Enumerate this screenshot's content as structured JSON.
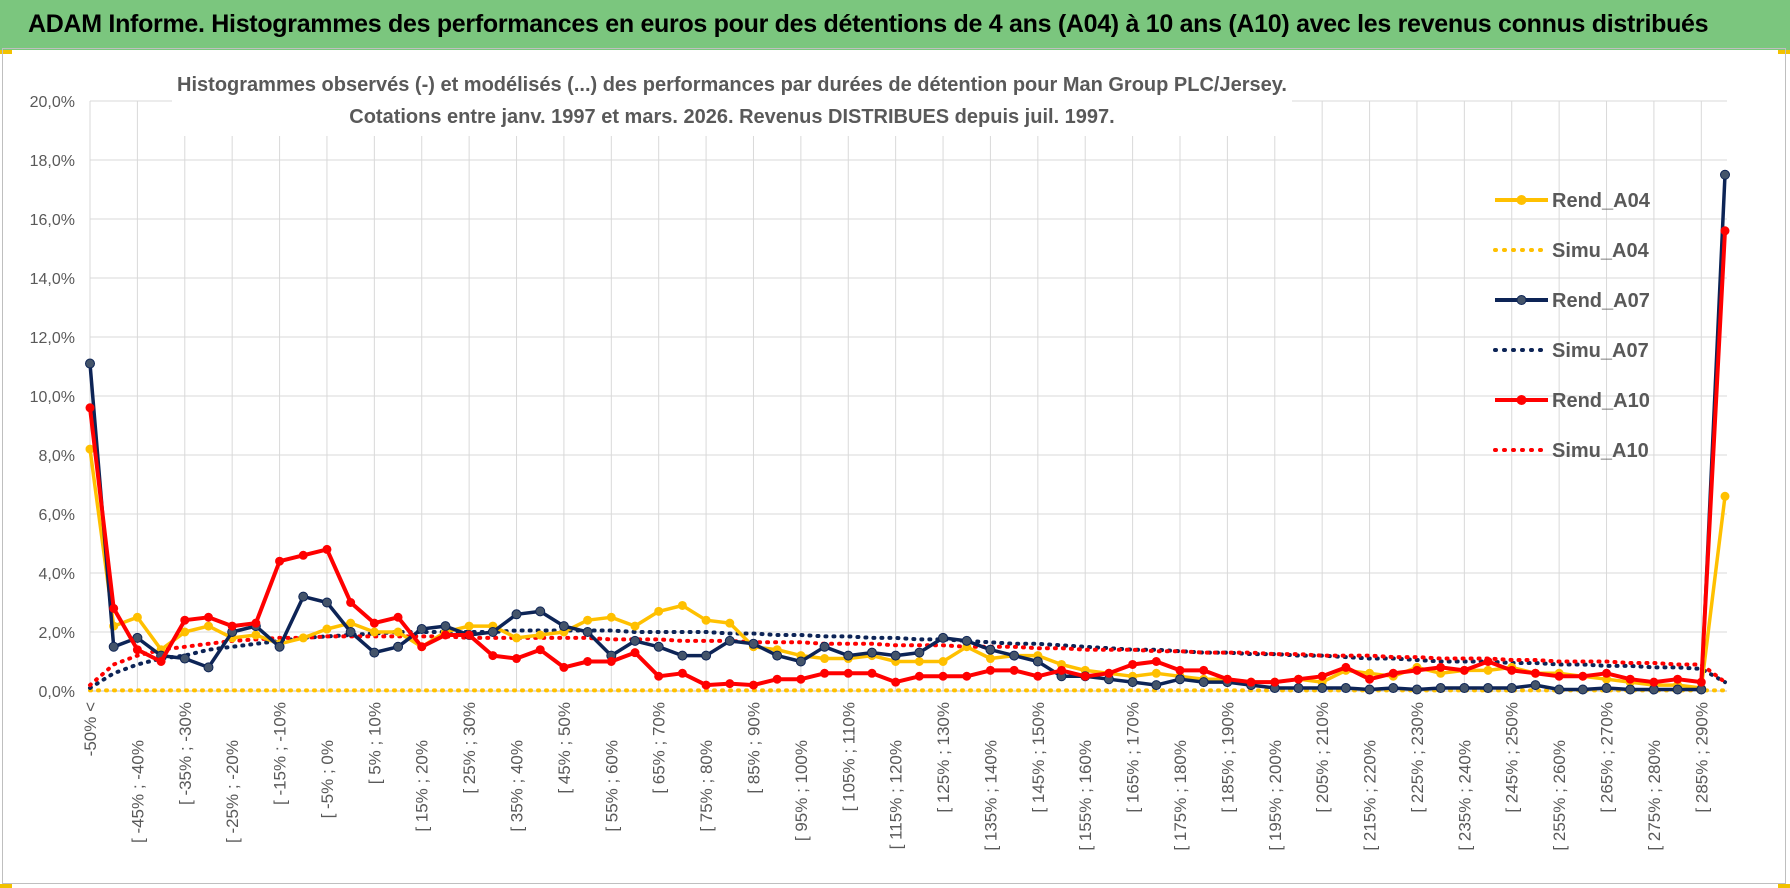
{
  "banner": {
    "title": "ADAM Informe. Histogrammes des performances en euros pour des détentions de 4 ans (A04) à 10 ans (A10) avec les revenus connus distribués"
  },
  "colors": {
    "banner_bg": "#7bc67e",
    "a04": "#ffc000",
    "a07": "#0d2456",
    "a10": "#ff0000",
    "grid": "#d9d9d9",
    "text": "#595959"
  },
  "chart_data": {
    "type": "line",
    "title_line1": "Histogrammes observés (-) et modélisés (...) des performances par durées de détention pour Man Group PLC/Jersey.",
    "title_line2": "Cotations entre janv. 1997 et mars. 2026. Revenus DISTRIBUES depuis juil. 1997.",
    "ylim": [
      0,
      20
    ],
    "yticks": [
      "0,0%",
      "2,0%",
      "4,0%",
      "6,0%",
      "8,0%",
      "10,0%",
      "12,0%",
      "14,0%",
      "16,0%",
      "18,0%",
      "20,0%"
    ],
    "xlabels_even": [
      "-50% <",
      "[ -45% ; -40%",
      "[ -35% ; -30%",
      "[ -25% ; -20%",
      "[ -15% ; -10%",
      "[ -5% ; 0%",
      "[ 5% ; 10%",
      "[ 15% ; 20%",
      "[ 25% ; 30%",
      "[ 35% ; 40%",
      "[ 45% ; 50%",
      "[ 55% ; 60%",
      "[ 65% ; 70%",
      "[ 75% ; 80%",
      "[ 85% ; 90%",
      "[ 95% ; 100%",
      "[ 105% ; 110%",
      "[ 115% ; 120%",
      "[ 125% ; 130%",
      "[ 135% ; 140%",
      "[ 145% ; 150%",
      "[ 155% ; 160%",
      "[ 165% ; 170%",
      "[ 175% ; 180%",
      "[ 185% ; 190%",
      "[ 195% ; 200%",
      "[ 205% ; 210%",
      "[ 215% ; 220%",
      "[ 225% ; 230%",
      "[ 235% ; 240%",
      "[ 245% ; 250%",
      "[ 255% ; 260%",
      "[ 265% ; 270%",
      "[ 275% ; 280%",
      "[ 285% ; 290%"
    ],
    "n_points": 70,
    "series": [
      {
        "name": "Rend_A04",
        "style": "solid",
        "marker": true,
        "color": "#ffc000",
        "values": [
          8.2,
          2.2,
          2.5,
          1.4,
          2.0,
          2.2,
          1.8,
          1.9,
          1.6,
          1.8,
          2.1,
          2.3,
          2.0,
          2.0,
          1.5,
          2.0,
          2.2,
          2.2,
          1.8,
          1.9,
          2.0,
          2.4,
          2.5,
          2.2,
          2.7,
          2.9,
          2.4,
          2.3,
          1.5,
          1.4,
          1.2,
          1.1,
          1.1,
          1.2,
          1.0,
          1.0,
          1.0,
          1.5,
          1.1,
          1.2,
          1.2,
          0.9,
          0.7,
          0.6,
          0.5,
          0.6,
          0.5,
          0.4,
          0.4,
          0.3,
          0.3,
          0.4,
          0.3,
          0.7,
          0.6,
          0.5,
          0.8,
          0.6,
          0.7,
          0.7,
          0.8,
          0.6,
          0.6,
          0.5,
          0.4,
          0.3,
          0.2,
          0.2,
          0.1,
          6.6
        ]
      },
      {
        "name": "Simu_A04",
        "style": "dotted",
        "marker": false,
        "color": "#ffc000",
        "values": [
          0.02,
          0.02,
          0.02,
          0.02,
          0.02,
          0.02,
          0.02,
          0.02,
          0.02,
          0.02,
          0.02,
          0.02,
          0.02,
          0.02,
          0.02,
          0.02,
          0.02,
          0.02,
          0.02,
          0.02,
          0.02,
          0.02,
          0.02,
          0.02,
          0.02,
          0.02,
          0.02,
          0.02,
          0.02,
          0.02,
          0.02,
          0.02,
          0.02,
          0.02,
          0.02,
          0.02,
          0.02,
          0.02,
          0.02,
          0.02,
          0.02,
          0.02,
          0.02,
          0.02,
          0.02,
          0.02,
          0.02,
          0.02,
          0.02,
          0.02,
          0.02,
          0.02,
          0.02,
          0.02,
          0.02,
          0.02,
          0.02,
          0.02,
          0.02,
          0.02,
          0.02,
          0.02,
          0.02,
          0.02,
          0.02,
          0.02,
          0.02,
          0.02,
          0.02,
          0.02
        ]
      },
      {
        "name": "Rend_A07",
        "style": "solid",
        "marker": true,
        "color": "#0d2456",
        "values": [
          11.1,
          1.5,
          1.8,
          1.2,
          1.1,
          0.8,
          2.0,
          2.2,
          1.5,
          3.2,
          3.0,
          2.0,
          1.3,
          1.5,
          2.1,
          2.2,
          1.9,
          2.0,
          2.6,
          2.7,
          2.2,
          2.0,
          1.2,
          1.7,
          1.5,
          1.2,
          1.2,
          1.7,
          1.6,
          1.2,
          1.0,
          1.5,
          1.2,
          1.3,
          1.2,
          1.3,
          1.8,
          1.7,
          1.4,
          1.2,
          1.0,
          0.5,
          0.5,
          0.4,
          0.3,
          0.2,
          0.4,
          0.3,
          0.3,
          0.2,
          0.1,
          0.1,
          0.1,
          0.1,
          0.05,
          0.1,
          0.05,
          0.1,
          0.1,
          0.1,
          0.1,
          0.2,
          0.05,
          0.05,
          0.1,
          0.05,
          0.05,
          0.05,
          0.05,
          17.5
        ]
      },
      {
        "name": "Simu_A07",
        "style": "dotted",
        "marker": false,
        "color": "#0d2456",
        "values": [
          0.1,
          0.6,
          0.9,
          1.1,
          1.2,
          1.4,
          1.5,
          1.6,
          1.7,
          1.8,
          1.85,
          1.9,
          1.95,
          2.0,
          2.0,
          2.0,
          2.0,
          2.0,
          2.05,
          2.05,
          2.05,
          2.05,
          2.05,
          2.0,
          2.0,
          2.0,
          2.0,
          1.95,
          1.95,
          1.9,
          1.9,
          1.85,
          1.85,
          1.8,
          1.8,
          1.75,
          1.75,
          1.7,
          1.65,
          1.6,
          1.6,
          1.55,
          1.5,
          1.45,
          1.4,
          1.4,
          1.35,
          1.3,
          1.3,
          1.25,
          1.25,
          1.2,
          1.2,
          1.15,
          1.1,
          1.1,
          1.05,
          1.0,
          1.0,
          1.0,
          0.95,
          0.95,
          0.9,
          0.9,
          0.85,
          0.85,
          0.8,
          0.8,
          0.75,
          0.3
        ]
      },
      {
        "name": "Rend_A10",
        "style": "solid",
        "marker": true,
        "color": "#ff0000",
        "values": [
          9.6,
          2.8,
          1.4,
          1.0,
          2.4,
          2.5,
          2.2,
          2.3,
          4.4,
          4.6,
          4.8,
          3.0,
          2.3,
          2.5,
          1.5,
          1.9,
          1.9,
          1.2,
          1.1,
          1.4,
          0.8,
          1.0,
          1.0,
          1.3,
          0.5,
          0.6,
          0.2,
          0.25,
          0.2,
          0.4,
          0.4,
          0.6,
          0.6,
          0.6,
          0.3,
          0.5,
          0.5,
          0.5,
          0.7,
          0.7,
          0.5,
          0.7,
          0.5,
          0.6,
          0.9,
          1.0,
          0.7,
          0.7,
          0.4,
          0.3,
          0.3,
          0.4,
          0.5,
          0.8,
          0.4,
          0.6,
          0.7,
          0.8,
          0.7,
          1.0,
          0.7,
          0.6,
          0.5,
          0.5,
          0.6,
          0.4,
          0.3,
          0.4,
          0.3,
          15.6
        ]
      },
      {
        "name": "Simu_A10",
        "style": "dotted",
        "marker": false,
        "color": "#ff0000",
        "values": [
          0.2,
          0.9,
          1.2,
          1.4,
          1.5,
          1.6,
          1.7,
          1.75,
          1.8,
          1.8,
          1.85,
          1.85,
          1.85,
          1.85,
          1.85,
          1.85,
          1.8,
          1.8,
          1.8,
          1.8,
          1.8,
          1.8,
          1.75,
          1.75,
          1.75,
          1.7,
          1.7,
          1.7,
          1.65,
          1.65,
          1.65,
          1.6,
          1.6,
          1.6,
          1.55,
          1.55,
          1.55,
          1.5,
          1.5,
          1.5,
          1.45,
          1.45,
          1.4,
          1.4,
          1.4,
          1.35,
          1.35,
          1.3,
          1.3,
          1.3,
          1.25,
          1.25,
          1.2,
          1.2,
          1.2,
          1.15,
          1.15,
          1.1,
          1.1,
          1.1,
          1.05,
          1.05,
          1.0,
          1.0,
          1.0,
          0.95,
          0.95,
          0.9,
          0.9,
          0.3
        ]
      }
    ]
  }
}
